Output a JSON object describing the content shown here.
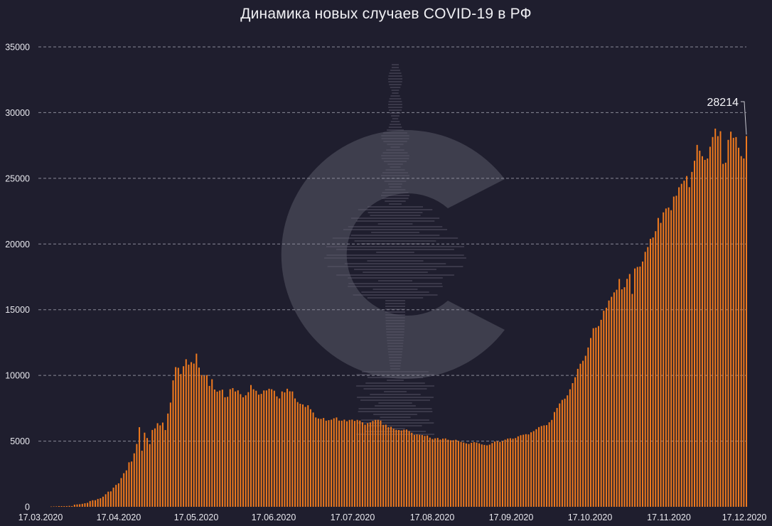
{
  "chart_data": {
    "type": "bar",
    "title": "Динамика новых случаев COVID-19 в РФ",
    "xlabel": "",
    "ylabel": "",
    "ylim": [
      0,
      35000
    ],
    "yticks": [
      "0",
      "5000",
      "10000",
      "15000",
      "20000",
      "25000",
      "30000",
      "35000"
    ],
    "ytick_values": [
      0,
      5000,
      10000,
      15000,
      20000,
      25000,
      30000,
      35000
    ],
    "xticks": [
      "17.03.2020",
      "17.04.2020",
      "17.05.2020",
      "17.06.2020",
      "17.07.2020",
      "17.08.2020",
      "17.09.2020",
      "17.10.2020",
      "17.11.2020",
      "17.12.2020"
    ],
    "x_start": "17.03.2020",
    "x_end": "17.12.2020",
    "grid": "horizontal dashed",
    "bar_color": "#f07a1e",
    "last_label": "28214",
    "values": [
      21,
      30,
      33,
      52,
      54,
      53,
      57,
      71,
      57,
      163,
      182,
      196,
      228,
      270,
      302,
      440,
      500,
      501,
      601,
      652,
      771,
      954,
      1154,
      1175,
      1459,
      1667,
      1786,
      2186,
      2558,
      2774,
      3388,
      3448,
      4070,
      4785,
      6060,
      4268,
      5642,
      5236,
      4774,
      5849,
      5966,
      6361,
      6198,
      6411,
      5841,
      7099,
      7933,
      9623,
      10633,
      10581,
      10102,
      10699,
      11231,
      10817,
      11012,
      10899,
      11656,
      10598,
      10028,
      9974,
      10028,
      9200,
      9709,
      8926,
      8764,
      8849,
      8915,
      8338,
      8371,
      8952,
      9035,
      8779,
      8863,
      8572,
      8338,
      8485,
      8726,
      9268,
      8946,
      8831,
      8536,
      8595,
      8855,
      8858,
      8984,
      8947,
      8835,
      8404,
      8248,
      8779,
      8706,
      8985,
      8790,
      8779,
      8246,
      7972,
      7843,
      7790,
      7600,
      7728,
      7425,
      7176,
      6800,
      6719,
      6693,
      6760,
      6556,
      6595,
      6632,
      6736,
      6800,
      6562,
      6556,
      6632,
      6509,
      6611,
      6635,
      6537,
      6615,
      6562,
      6428,
      6248,
      6368,
      6422,
      6537,
      6611,
      6615,
      6562,
      6234,
      6248,
      6060,
      6088,
      5940,
      5862,
      5842,
      5811,
      5871,
      5881,
      5765,
      5635,
      5475,
      5509,
      5482,
      5462,
      5394,
      5427,
      5267,
      5159,
      5212,
      5241,
      5118,
      5189,
      5204,
      5106,
      5061,
      5065,
      5102,
      5000,
      4945,
      4892,
      4828,
      4785,
      4870,
      4921,
      4892,
      4828,
      4748,
      4711,
      4676,
      4729,
      4852,
      4969,
      4993,
      4941,
      5000,
      5110,
      5195,
      5218,
      5185,
      5233,
      5363,
      5449,
      5488,
      5529,
      5509,
      5670,
      5762,
      5905,
      6065,
      6148,
      6196,
      6215,
      6431,
      6611,
      7212,
      7523,
      7867,
      8135,
      8232,
      8481,
      8945,
      9412,
      9859,
      10499,
      10888,
      11115,
      11493,
      12126,
      12846,
      13592,
      13634,
      13754,
      14231,
      14922,
      15150,
      15700,
      15982,
      16319,
      16521,
      17340,
      16550,
      16710,
      17347,
      17717,
      16202,
      18140,
      18257,
      18283,
      18665,
      19404,
      19768,
      20396,
      20498,
      20977,
      21983,
      21608,
      22410,
      22702,
      22778,
      22572,
      23610,
      23675,
      24318,
      24581,
      24822,
      25173,
      24326,
      25487,
      26338,
      27543,
      27100,
      26683,
      26402,
      26509,
      27403,
      28145,
      28782,
      28209,
      28585,
      26097,
      26190,
      27927,
      28552,
      28080,
      28137,
      27328,
      26689,
      26509,
      28214
    ]
  },
  "watermark": {
    "name": "logo-c-watermark"
  }
}
